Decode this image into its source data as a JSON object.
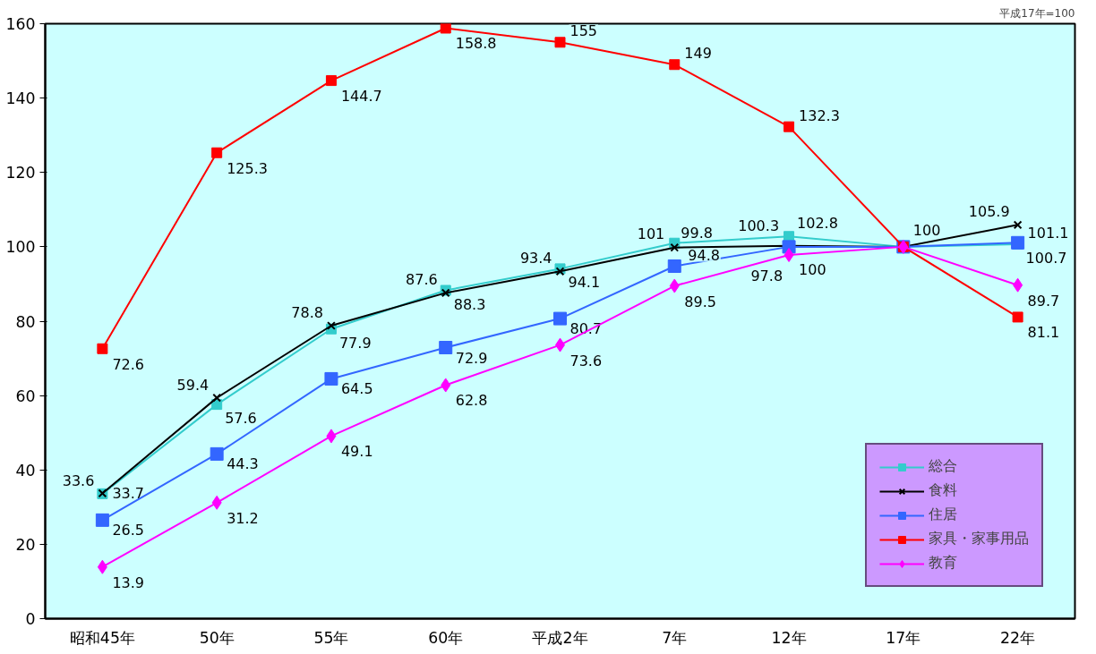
{
  "chart_data": {
    "type": "line",
    "categories": [
      "昭和45年",
      "50年",
      "55年",
      "60年",
      "平成2年",
      "7年",
      "12年",
      "17年",
      "22年"
    ],
    "series": [
      {
        "name": "総合",
        "color": "#33cccc",
        "marker": "square",
        "values": [
          33.6,
          57.6,
          77.9,
          88.3,
          94.1,
          101,
          102.8,
          100,
          100.7
        ],
        "value_labels": [
          "33.6",
          "57.6",
          "77.9",
          "88.3",
          "94.1",
          "101",
          "102.8",
          null,
          "100.7"
        ]
      },
      {
        "name": "食料",
        "color": "#000000",
        "marker": "cross",
        "values": [
          33.7,
          59.4,
          78.8,
          87.6,
          93.4,
          99.8,
          100.3,
          100,
          105.9
        ],
        "value_labels": [
          "33.7",
          "59.4",
          "78.8",
          "87.6",
          "93.4",
          "99.8",
          "100.3",
          "100",
          "105.9"
        ]
      },
      {
        "name": "住居",
        "color": "#3366ff",
        "marker": "square",
        "values": [
          26.5,
          44.3,
          64.5,
          72.9,
          80.7,
          94.8,
          100,
          100,
          101.1
        ],
        "value_labels": [
          "26.5",
          "44.3",
          "64.5",
          "72.9",
          "80.7",
          "94.8",
          "100",
          null,
          "101.1"
        ]
      },
      {
        "name": "家具・家事用品",
        "color": "#ff0000",
        "marker": "square",
        "values": [
          72.6,
          125.3,
          144.7,
          158.8,
          155,
          149,
          132.3,
          100,
          81.1
        ],
        "value_labels": [
          "72.6",
          "125.3",
          "144.7",
          "158.8",
          "155",
          "149",
          "132.3",
          null,
          "81.1"
        ]
      },
      {
        "name": "教育",
        "color": "#ff00ff",
        "marker": "diamond",
        "values": [
          13.9,
          31.2,
          49.1,
          62.8,
          73.6,
          89.5,
          97.8,
          100,
          89.7
        ],
        "value_labels": [
          "13.9",
          "31.2",
          "49.1",
          "62.8",
          "73.6",
          "89.5",
          "97.8",
          null,
          "89.7"
        ]
      }
    ],
    "ylim": [
      0,
      160
    ],
    "yticks": [
      0,
      20,
      40,
      60,
      80,
      100,
      120,
      140,
      160
    ],
    "grid": false,
    "legend": "bottom right",
    "annotations": [
      "平成17年=100"
    ]
  }
}
